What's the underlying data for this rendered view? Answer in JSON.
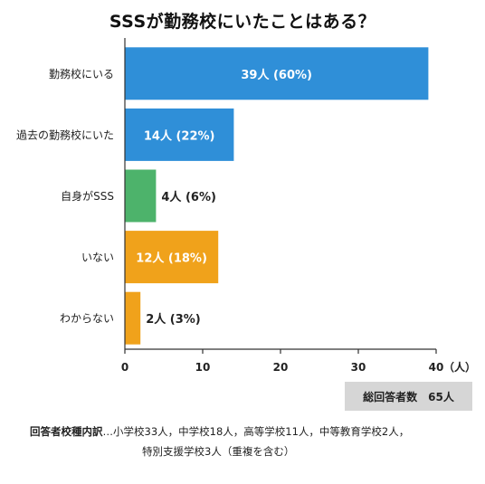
{
  "chart_data": {
    "type": "bar",
    "orientation": "horizontal",
    "title": "SSSが勤務校にいたことはある？",
    "categories": [
      "勤務校にいる",
      "過去の勤務校にいた",
      "自身がSSS",
      "いない",
      "わからない"
    ],
    "values": [
      39,
      14,
      4,
      12,
      2
    ],
    "data_labels": [
      "39人 (60%)",
      "14人 (22%)",
      "4人  (6%)",
      "12人 (18%)",
      "2人 (3%)"
    ],
    "colors": [
      "#2f8fd8",
      "#2f8fd8",
      "#4db36b",
      "#f0a21b",
      "#f0a21b"
    ],
    "xlim": [
      0,
      40
    ],
    "xticks": [
      "0",
      "10",
      "20",
      "30",
      "40"
    ],
    "xunit": "（人）",
    "grid": false
  },
  "total": {
    "label": "総回答者数",
    "value": "65人"
  },
  "breakdown": {
    "label": "回答者校種内訳",
    "line1": "…小学校33人，中学校18人，高等学校11人，中等教育学校2人，",
    "line2": "特別支援学校3人（重複を含む）"
  }
}
